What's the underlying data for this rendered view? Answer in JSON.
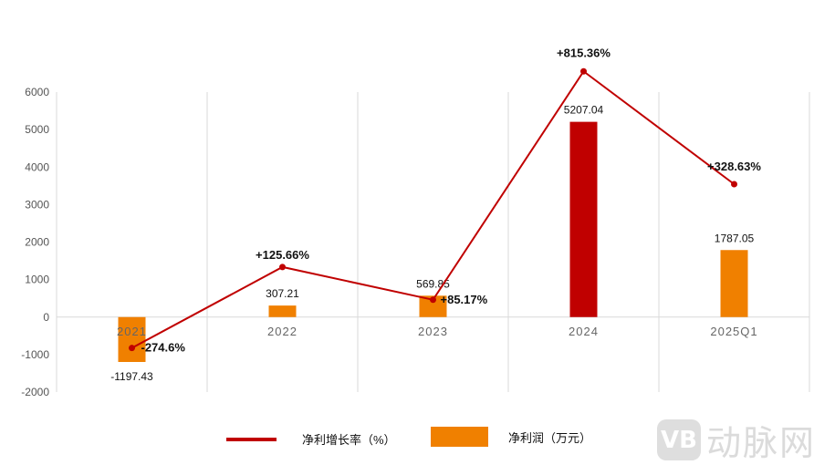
{
  "chart_data": {
    "type": "bar+line",
    "categories": [
      "2021",
      "2022",
      "2023",
      "2024",
      "2025Q1"
    ],
    "yticks": [
      "6000",
      "5000",
      "4000",
      "3000",
      "2000",
      "1000",
      "0",
      "-1000",
      "-2000"
    ],
    "ylim": [
      -2000,
      6000
    ],
    "grid": "vertical",
    "series": [
      {
        "name": "净利润（万元）",
        "type": "bar",
        "values": [
          -1197.43,
          307.21,
          569.85,
          5207.04,
          1787.05
        ],
        "labels": [
          "-1197.43",
          "307.21",
          "569.85",
          "5207.04",
          "1787.05"
        ],
        "colors": [
          "#f08000",
          "#f08000",
          "#f08000",
          "#c00000",
          "#f08000"
        ]
      },
      {
        "name": "净利增长率（%）",
        "type": "line",
        "values": [
          -274.6,
          125.66,
          85.17,
          815.36,
          328.63
        ],
        "labels": [
          "-274.6%",
          "+125.66%",
          "+85.17%",
          "+815.36%",
          "+328.63%"
        ],
        "plotted_on_left_axis": [
          -825,
          1335,
          461,
          6553,
          3544
        ],
        "color": "#c00000"
      }
    ],
    "legend": [
      "净利增长率（%）",
      "净利润（万元）"
    ],
    "legend_placement": "bottom"
  },
  "watermark": {
    "logo": "VB",
    "text": "动脉网"
  }
}
